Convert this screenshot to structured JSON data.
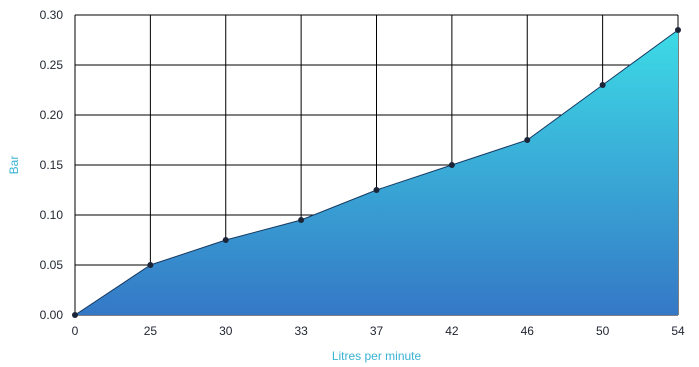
{
  "chart_data": {
    "type": "area",
    "title": "",
    "xlabel": "Litres per minute",
    "ylabel": "Bar",
    "categories": [
      "0",
      "25",
      "30",
      "33",
      "37",
      "42",
      "46",
      "50",
      "54"
    ],
    "values": [
      0.0,
      0.05,
      0.075,
      0.095,
      0.125,
      0.15,
      0.175,
      0.23,
      0.285
    ],
    "ylim": [
      0,
      0.3
    ],
    "yticks": [
      "0.00",
      "0.05",
      "0.10",
      "0.15",
      "0.20",
      "0.25",
      "0.30"
    ],
    "grid": "horizontal",
    "legend": "none",
    "colors": {
      "fill_top": "#3ddbe6",
      "fill_bottom": "#3578c6",
      "line": "#163a63",
      "marker": "#1c2438",
      "gridline": "#000000",
      "axis_title": "#39b3d4"
    }
  }
}
